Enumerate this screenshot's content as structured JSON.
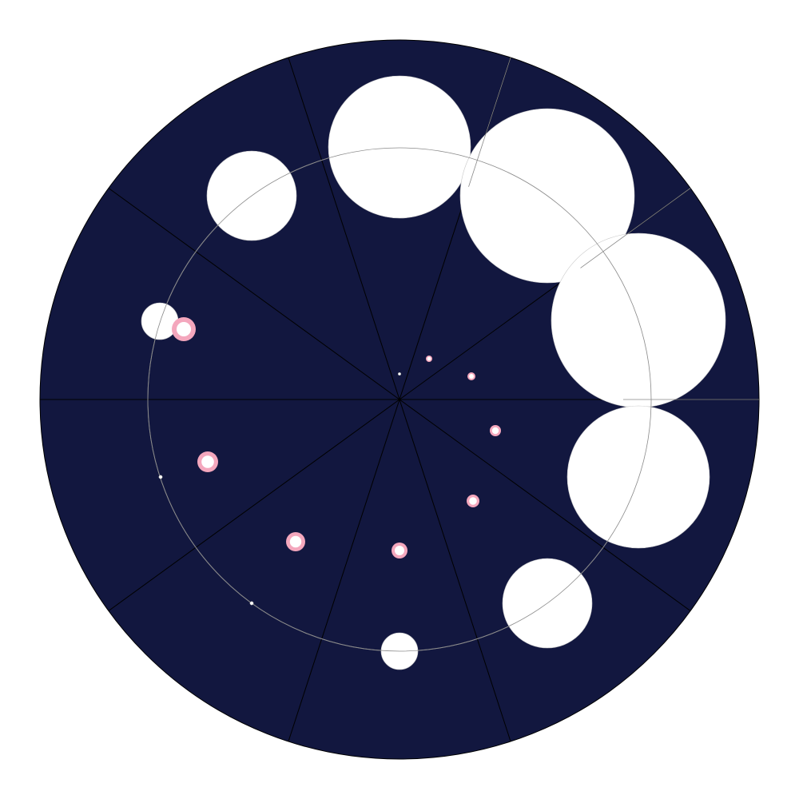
{
  "colors": {
    "page_background": "#ffffff",
    "disc_fill": "#12173f",
    "disc_stroke": "#000000",
    "sector_line": "#000000",
    "inner_ring": "#8a8a8a",
    "bubble_fill": "#ffffff",
    "pink_ring": "#f4a7bd"
  },
  "diagram": {
    "sector_count": 10,
    "white_circles": [
      {
        "id": "top",
        "size": 0.88
      },
      {
        "id": "upper-right",
        "size": 1.09
      },
      {
        "id": "right",
        "size": 1.09
      },
      {
        "id": "lower-right",
        "size": 0.89
      },
      {
        "id": "upper-left",
        "size": 0.56
      },
      {
        "id": "bottom-right",
        "size": 0.56
      },
      {
        "id": "left",
        "size": 0.23
      },
      {
        "id": "bottom",
        "size": 0.23
      }
    ],
    "pink_ring_markers": [
      {
        "id": "left-upper"
      },
      {
        "id": "left-lower"
      },
      {
        "id": "lower-left"
      },
      {
        "id": "bottom-center"
      },
      {
        "id": "center-upper-right"
      },
      {
        "id": "center-right"
      },
      {
        "id": "center-lower-right"
      },
      {
        "id": "center-low-right"
      }
    ],
    "tiny_dots": [
      {
        "id": "center"
      },
      {
        "id": "left-far"
      },
      {
        "id": "lower-left-far"
      }
    ]
  }
}
